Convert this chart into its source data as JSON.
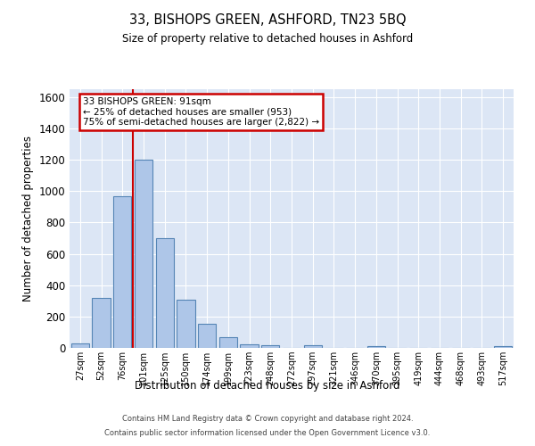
{
  "title": "33, BISHOPS GREEN, ASHFORD, TN23 5BQ",
  "subtitle": "Size of property relative to detached houses in Ashford",
  "xlabel": "Distribution of detached houses by size in Ashford",
  "ylabel": "Number of detached properties",
  "bin_labels": [
    "27sqm",
    "52sqm",
    "76sqm",
    "101sqm",
    "125sqm",
    "150sqm",
    "174sqm",
    "199sqm",
    "223sqm",
    "248sqm",
    "272sqm",
    "297sqm",
    "321sqm",
    "346sqm",
    "370sqm",
    "395sqm",
    "419sqm",
    "444sqm",
    "468sqm",
    "493sqm",
    "517sqm"
  ],
  "bar_heights": [
    30,
    320,
    970,
    1200,
    700,
    305,
    155,
    70,
    25,
    15,
    2,
    15,
    2,
    2,
    10,
    2,
    2,
    2,
    2,
    2,
    10
  ],
  "bar_color": "#aec6e8",
  "bar_edge_color": "#5585b5",
  "vline_color": "#cc0000",
  "ylim": [
    0,
    1650
  ],
  "yticks": [
    0,
    200,
    400,
    600,
    800,
    1000,
    1200,
    1400,
    1600
  ],
  "annotation_line1": "33 BISHOPS GREEN: 91sqm",
  "annotation_line2": "← 25% of detached houses are smaller (953)",
  "annotation_line3": "75% of semi-detached houses are larger (2,822) →",
  "annotation_box_color": "#cc0000",
  "annotation_bg_color": "#ffffff",
  "bg_color": "#dce6f5",
  "footer_line1": "Contains HM Land Registry data © Crown copyright and database right 2024.",
  "footer_line2": "Contains public sector information licensed under the Open Government Licence v3.0."
}
